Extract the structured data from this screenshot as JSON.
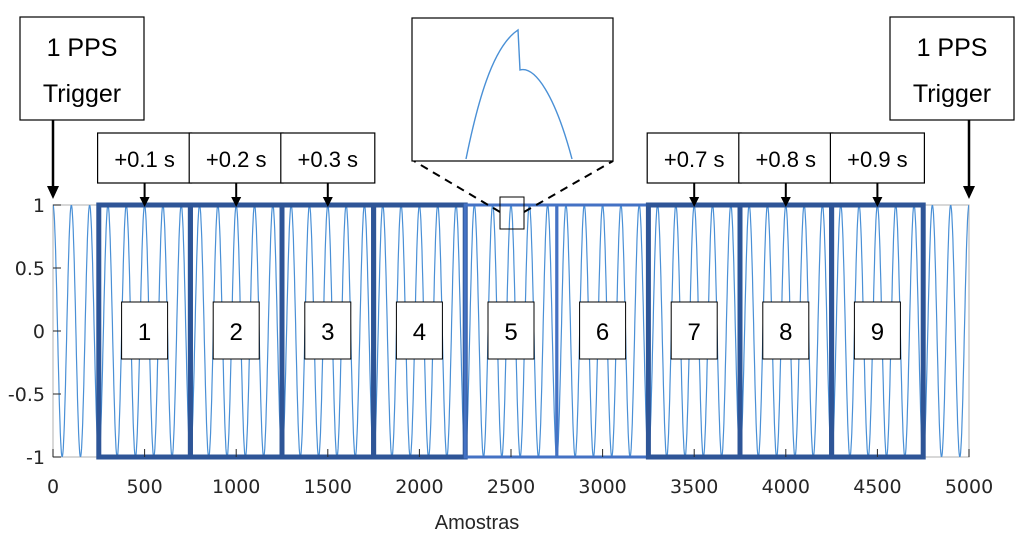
{
  "chart_data": {
    "type": "line",
    "xlabel": "Amostras",
    "ylabel": "",
    "xlim": [
      0,
      5000
    ],
    "ylim": [
      -1,
      1
    ],
    "x_ticks": [
      0,
      500,
      1000,
      1500,
      2000,
      2500,
      3000,
      3500,
      4000,
      4500,
      5000
    ],
    "y_ticks": [
      1,
      0.5,
      0,
      -0.5,
      -1
    ],
    "x_tick_labels": [
      "0",
      "500",
      "1000",
      "1500",
      "2000",
      "2500",
      "3000",
      "3500",
      "4000",
      "4500",
      "5000"
    ],
    "y_tick_labels": [
      "1",
      "0.5",
      "0",
      "-0.5",
      "-1"
    ],
    "grid": false,
    "series": [
      {
        "signal": "sine",
        "amplitude": 1,
        "cycles_per_sample": 0.01,
        "x_range": [
          0,
          5000
        ],
        "color": "#4a90d6"
      }
    ],
    "segments": [
      {
        "label": "1",
        "x_start": 250,
        "x_end": 750,
        "style": "thick"
      },
      {
        "label": "2",
        "x_start": 750,
        "x_end": 1250,
        "style": "thick"
      },
      {
        "label": "3",
        "x_start": 1250,
        "x_end": 1750,
        "style": "thick"
      },
      {
        "label": "4",
        "x_start": 1750,
        "x_end": 2250,
        "style": "thick"
      },
      {
        "label": "5",
        "x_start": 2250,
        "x_end": 2750,
        "style": "thin"
      },
      {
        "label": "6",
        "x_start": 2750,
        "x_end": 3250,
        "style": "thin"
      },
      {
        "label": "7",
        "x_start": 3250,
        "x_end": 3750,
        "style": "thick"
      },
      {
        "label": "8",
        "x_start": 3750,
        "x_end": 4250,
        "style": "thick"
      },
      {
        "label": "9",
        "x_start": 4250,
        "x_end": 4750,
        "style": "thick"
      }
    ],
    "offsets": [
      {
        "label": "+0.1 s",
        "x": 500
      },
      {
        "label": "+0.2 s",
        "x": 1000
      },
      {
        "label": "+0.3 s",
        "x": 1500
      },
      {
        "label": "+0.7 s",
        "x": 3500
      },
      {
        "label": "+0.8 s",
        "x": 4000
      },
      {
        "label": "+0.9 s",
        "x": 4500
      }
    ],
    "triggers": [
      {
        "lines": [
          "1 PPS",
          "Trigger"
        ],
        "x": 0
      },
      {
        "lines": [
          "1 PPS",
          "Trigger"
        ],
        "x": 5000
      }
    ],
    "zoom": {
      "x_center": 2500,
      "x_halfwidth": 70
    }
  },
  "colors": {
    "signal": "#4a90d6",
    "segment_border": "#2e5597",
    "segment_border_thin": "#4472c4",
    "axes": "#262626"
  }
}
